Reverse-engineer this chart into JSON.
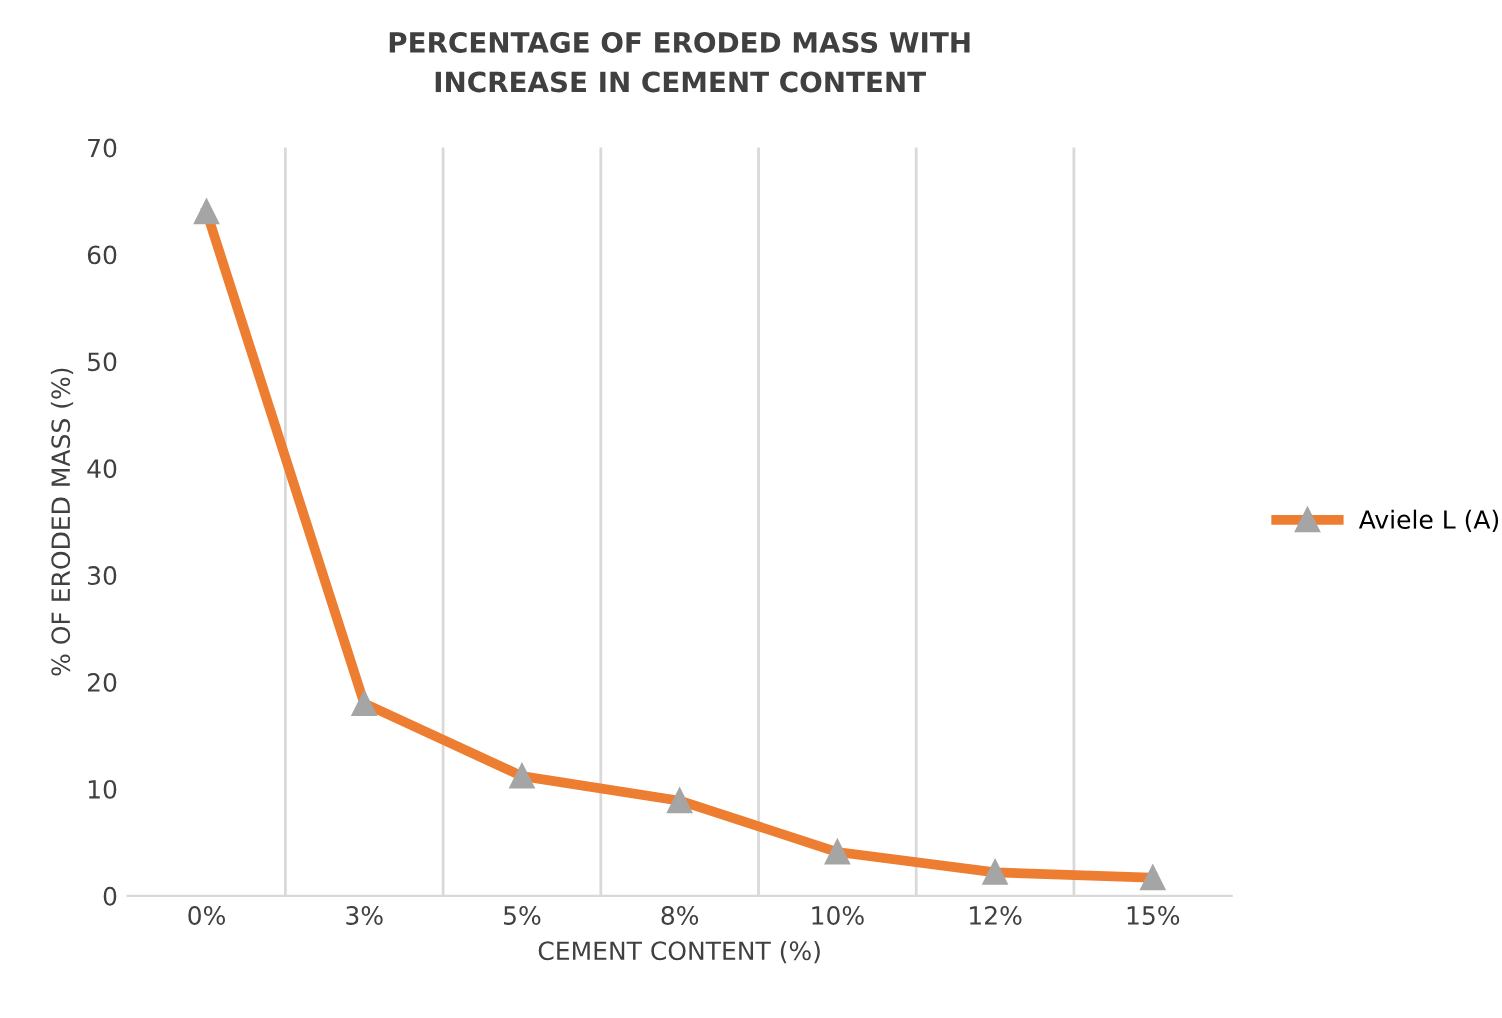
{
  "chart_data": {
    "type": "line",
    "title": "PERCENTAGE OF ERODED MASS WITH\nINCREASE IN CEMENT CONTENT",
    "xlabel": "CEMENT CONTENT (%)",
    "ylabel": "% OF ERODED MASS (%)",
    "categories": [
      "0%",
      "3%",
      "5%",
      "8%",
      "10%",
      "12%",
      "15%"
    ],
    "series": [
      {
        "name": "Aviele L (A)",
        "color": "#ed7d31",
        "values": [
          64,
          18,
          11.2,
          8.9,
          4.1,
          2.2,
          1.7
        ]
      }
    ],
    "ylim": [
      0,
      70
    ],
    "yticks": [
      0,
      10,
      20,
      30,
      40,
      50,
      60,
      70
    ],
    "grid": "x",
    "legend": "right",
    "marker": "triangle",
    "line_style": "solid"
  }
}
